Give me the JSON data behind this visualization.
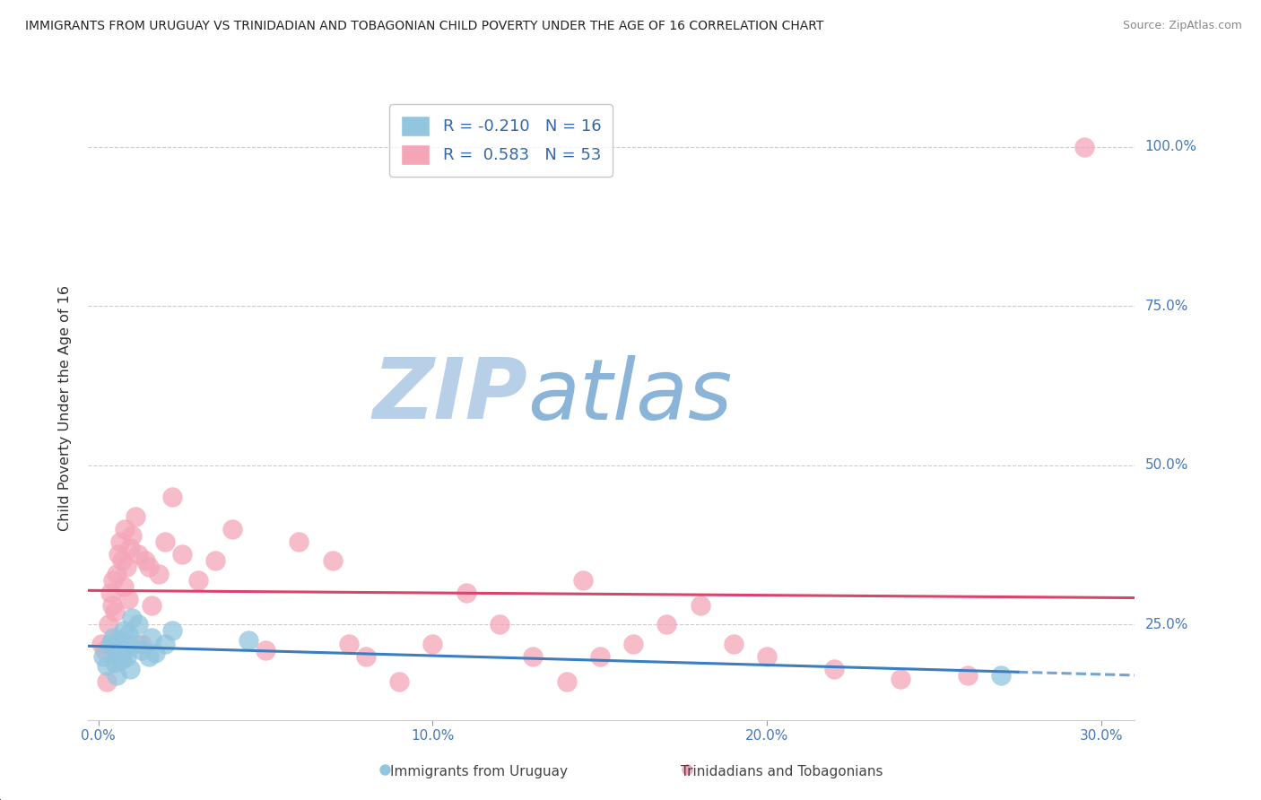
{
  "title": "IMMIGRANTS FROM URUGUAY VS TRINIDADIAN AND TOBAGONIAN CHILD POVERTY UNDER THE AGE OF 16 CORRELATION CHART",
  "source": "Source: ZipAtlas.com",
  "ylabel": "Child Poverty Under the Age of 16",
  "ytick_vals": [
    25.0,
    50.0,
    75.0,
    100.0
  ],
  "ytick_labels": [
    "25.0%",
    "50.0%",
    "75.0%",
    "100.0%"
  ],
  "xtick_vals": [
    0.0,
    10.0,
    20.0,
    30.0
  ],
  "xtick_labels": [
    "0.0%",
    "10.0%",
    "20.0%",
    "30.0%"
  ],
  "ylim": [
    10.0,
    108.0
  ],
  "xlim": [
    -0.3,
    31.0
  ],
  "color_blue": "#92c5de",
  "color_pink": "#f4a6b8",
  "color_blue_line": "#3a7ebf",
  "color_pink_line": "#d9456a",
  "watermark_zip": "ZIP",
  "watermark_atlas": "atlas",
  "watermark_color_zip": "#b8cfe8",
  "watermark_color_atlas": "#8ab4d8",
  "uruguay_x": [
    0.15,
    0.25,
    0.35,
    0.4,
    0.45,
    0.5,
    0.55,
    0.6,
    0.65,
    0.7,
    0.75,
    0.8,
    0.85,
    0.9,
    0.95,
    1.0,
    1.1,
    1.2,
    1.3,
    1.5,
    1.6,
    1.7,
    2.0,
    2.2,
    4.5,
    27.0
  ],
  "uruguay_y": [
    20.0,
    18.5,
    22.0,
    21.5,
    23.0,
    19.0,
    17.0,
    22.5,
    20.5,
    19.5,
    24.0,
    21.0,
    20.0,
    23.5,
    18.0,
    26.0,
    22.0,
    25.0,
    21.0,
    20.0,
    23.0,
    20.5,
    22.0,
    24.0,
    22.5,
    17.0
  ],
  "trinidad_x": [
    0.1,
    0.2,
    0.25,
    0.3,
    0.35,
    0.4,
    0.45,
    0.5,
    0.55,
    0.6,
    0.65,
    0.7,
    0.75,
    0.8,
    0.85,
    0.9,
    0.95,
    1.0,
    1.1,
    1.2,
    1.3,
    1.4,
    1.5,
    1.6,
    1.8,
    2.0,
    2.2,
    2.5,
    3.0,
    3.5,
    4.0,
    5.0,
    6.0,
    7.0,
    7.5,
    8.0,
    9.0,
    10.0,
    11.0,
    12.0,
    13.0,
    14.0,
    14.5,
    15.0,
    16.0,
    17.0,
    18.0,
    19.0,
    20.0,
    22.0,
    24.0,
    26.0,
    29.5
  ],
  "trinidad_y": [
    22.0,
    21.0,
    16.0,
    25.0,
    30.0,
    28.0,
    32.0,
    27.0,
    33.0,
    36.0,
    38.0,
    35.0,
    31.0,
    40.0,
    34.0,
    29.0,
    37.0,
    39.0,
    42.0,
    36.0,
    22.0,
    35.0,
    34.0,
    28.0,
    33.0,
    38.0,
    45.0,
    36.0,
    32.0,
    35.0,
    40.0,
    21.0,
    38.0,
    35.0,
    22.0,
    20.0,
    16.0,
    22.0,
    30.0,
    25.0,
    20.0,
    16.0,
    32.0,
    20.0,
    22.0,
    25.0,
    28.0,
    22.0,
    20.0,
    18.0,
    16.5,
    17.0,
    100.0
  ]
}
